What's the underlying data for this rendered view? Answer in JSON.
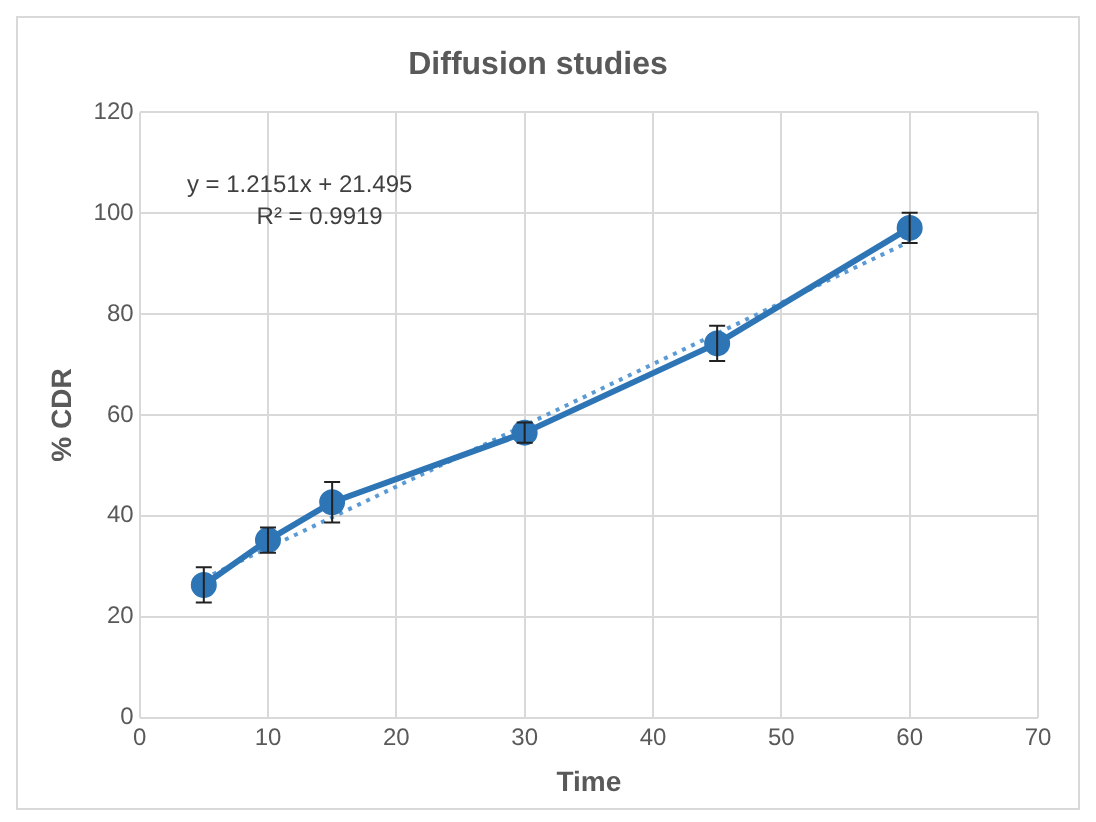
{
  "chart_data": {
    "type": "line",
    "title": "Diffusion studies",
    "xlabel": "Time",
    "ylabel": "% CDR",
    "x": [
      5,
      10,
      15,
      30,
      45,
      60
    ],
    "series": [
      {
        "color": "#2e75b6",
        "values": [
          26.3,
          35.2,
          42.7,
          56.5,
          74.2,
          97.1
        ],
        "errors": [
          3.5,
          2.5,
          4,
          2,
          3.5,
          3
        ],
        "marker": "circle",
        "line_style": "solid"
      },
      {
        "type": "line",
        "color": "#5b9bd5",
        "x": [
          5,
          60
        ],
        "values": [
          27.57,
          94.4
        ],
        "marker": "none",
        "line_style": "dotted"
      }
    ],
    "annotations": [
      "y = 1.2151x + 21.495",
      "R² = 0.9919"
    ],
    "xlim": [
      0,
      70
    ],
    "xticks": [
      0,
      10,
      20,
      30,
      40,
      50,
      60,
      70
    ],
    "ylim": [
      0,
      120
    ],
    "yticks": [
      0,
      20,
      40,
      60,
      80,
      100,
      120
    ],
    "grid": true,
    "legend": false
  }
}
